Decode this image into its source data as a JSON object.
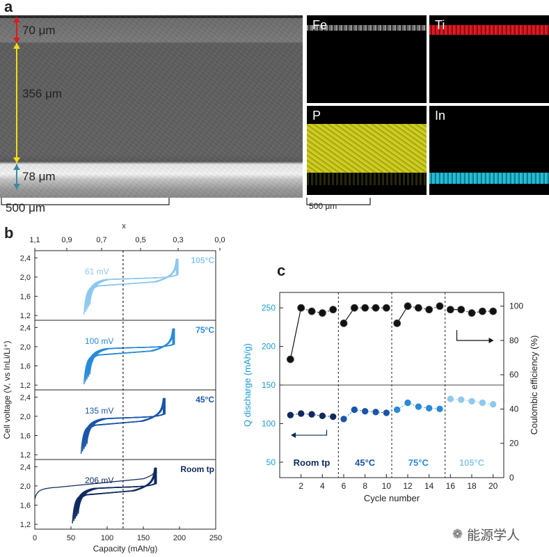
{
  "panel_a": {
    "letter": "a",
    "measurements": [
      {
        "label": "70 μm",
        "color": "#e01818"
      },
      {
        "label": "356 μm",
        "color": "#f0e010"
      },
      {
        "label": "78 μm",
        "color": "#3a8aa0"
      }
    ],
    "sem_scalebar": "500 μm",
    "eds_scalebar": "500 μm",
    "eds_maps": [
      {
        "element": "Fe",
        "color": "#d8d8d8"
      },
      {
        "element": "Ti",
        "color": "#e01820"
      },
      {
        "element": "P",
        "color": "#c8c820"
      },
      {
        "element": "In",
        "color": "#20b8d0"
      }
    ]
  },
  "panel_b": {
    "letter": "b",
    "top_axis_label": "x",
    "top_ticks": [
      "1,1",
      "0,9",
      "0,7",
      "0,5",
      "0,3",
      "0,0"
    ],
    "y_ticks": [
      "2,4",
      "2,0",
      "1,6",
      "1,2"
    ],
    "x_ticks": [
      "0",
      "50",
      "100",
      "150",
      "200",
      "250"
    ],
    "xlabel": "Capacity (mAh/g)",
    "ylabel": "Cell voltage (V, vs InLi/Li⁺)",
    "subpanels": [
      {
        "temp": "105°C",
        "overpotential": "61 mV",
        "color": "#8ec8ee"
      },
      {
        "temp": "75°C",
        "overpotential": "100 mV",
        "color": "#2a8ad8"
      },
      {
        "temp": "45°C",
        "overpotential": "135 mV",
        "color": "#1a55a8"
      },
      {
        "temp": "Room tp",
        "overpotential": "206 mV",
        "color": "#0e2a5e"
      }
    ]
  },
  "panel_c": {
    "letter": "c",
    "xlabel": "Cycle number",
    "ylabel_left": "Q discharge (mAh/g)",
    "ylabel_right": "Coulombic efficiency (%)",
    "left_ticks": [
      "250",
      "200",
      "150",
      "100",
      "50"
    ],
    "right_ticks": [
      "100",
      "80",
      "60",
      "40",
      "20",
      "0"
    ],
    "x_ticks": [
      "2",
      "4",
      "6",
      "8",
      "10",
      "12",
      "14",
      "16",
      "18",
      "20"
    ],
    "segment_labels": [
      {
        "text": "Room tp",
        "color": "#0e2a5e"
      },
      {
        "text": "45°C",
        "color": "#1a55a8"
      },
      {
        "text": "75°C",
        "color": "#2a8ad8"
      },
      {
        "text": "105°C",
        "color": "#8ec8ee"
      }
    ]
  },
  "watermark": "能源学人",
  "chart_data": [
    {
      "type": "line",
      "title": "",
      "xlabel": "Capacity (mAh/g)",
      "ylabel": "Cell voltage (V, vs InLi/Li⁺)",
      "xlim": [
        0,
        250
      ],
      "ylim": [
        1.1,
        2.6
      ],
      "series": [
        {
          "name": "105°C",
          "charge_end_capacity": 198,
          "discharge_plateau_V": 1.85,
          "overpotential_mV": 61
        },
        {
          "name": "75°C",
          "charge_end_capacity": 193,
          "discharge_plateau_V": 1.86,
          "overpotential_mV": 100
        },
        {
          "name": "45°C",
          "charge_end_capacity": 180,
          "discharge_plateau_V": 1.85,
          "overpotential_mV": 135
        },
        {
          "name": "Room tp",
          "charge_end_capacity": 168,
          "discharge_plateau_V": 1.85,
          "overpotential_mV": 206
        }
      ]
    },
    {
      "type": "scatter",
      "title": "",
      "xlabel": "Cycle number",
      "ylabel": "Q discharge (mAh/g)",
      "y2label": "Coulombic efficiency (%)",
      "xlim": [
        0,
        21
      ],
      "ylim": [
        30,
        270
      ],
      "y2lim": [
        0,
        108
      ],
      "x": [
        1,
        2,
        3,
        4,
        5,
        6,
        7,
        8,
        9,
        10,
        11,
        12,
        13,
        14,
        15,
        16,
        17,
        18,
        19,
        20
      ],
      "series": [
        {
          "name": "Q discharge",
          "axis": "left",
          "values": [
            111,
            113,
            112,
            110,
            109,
            106,
            118,
            116,
            115,
            114,
            118,
            127,
            122,
            120,
            119,
            132,
            131,
            129,
            127,
            125
          ]
        },
        {
          "name": "Coulombic efficiency",
          "axis": "right",
          "values": [
            69,
            99,
            97,
            96,
            98,
            90,
            99,
            99,
            99,
            99,
            90,
            100,
            99,
            98,
            100,
            98,
            98,
            96,
            97,
            97
          ]
        }
      ],
      "segment_boundaries": [
        5.5,
        10.5,
        15.5
      ]
    }
  ]
}
